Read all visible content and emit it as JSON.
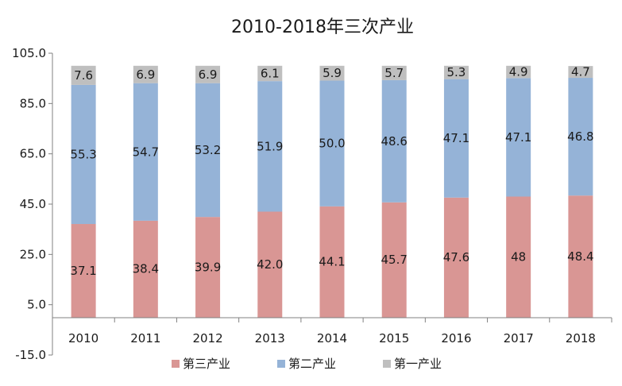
{
  "chart_data": {
    "type": "bar",
    "stacked": true,
    "title": "2010-2018年三次产业",
    "xlabel": "",
    "ylabel": "",
    "categories": [
      "2010",
      "2011",
      "2012",
      "2013",
      "2014",
      "2015",
      "2016",
      "2017",
      "2018"
    ],
    "ylim": [
      -15.0,
      105.0
    ],
    "yticks": [
      "105.0",
      "85.0",
      "65.0",
      "45.0",
      "25.0",
      "5.0",
      "-15.0"
    ],
    "yticks_values": [
      105,
      85,
      65,
      45,
      25,
      5,
      -15
    ],
    "grid": false,
    "legend_position": "bottom",
    "series": [
      {
        "name": "第三产业",
        "color": "#d99694",
        "values": [
          37.1,
          38.4,
          39.9,
          42.0,
          44.1,
          45.7,
          47.6,
          48,
          48.4
        ],
        "labels": [
          "37.1",
          "38.4",
          "39.9",
          "42.0",
          "44.1",
          "45.7",
          "47.6",
          "48",
          "48.4"
        ]
      },
      {
        "name": "第二产业",
        "color": "#95b3d7",
        "values": [
          55.3,
          54.7,
          53.2,
          51.9,
          50.0,
          48.6,
          47.1,
          47.1,
          46.8
        ],
        "labels": [
          "55.3",
          "54.7",
          "53.2",
          "51.9",
          "50.0",
          "48.6",
          "47.1",
          "47.1",
          "46.8"
        ]
      },
      {
        "name": "第一产业",
        "color": "#bfbfbf",
        "values": [
          7.6,
          6.9,
          6.9,
          6.1,
          5.9,
          5.7,
          5.3,
          4.9,
          4.7
        ],
        "labels": [
          "7.6",
          "6.9",
          "6.9",
          "6.1",
          "5.9",
          "5.7",
          "5.3",
          "4.9",
          "4.7"
        ]
      }
    ]
  }
}
